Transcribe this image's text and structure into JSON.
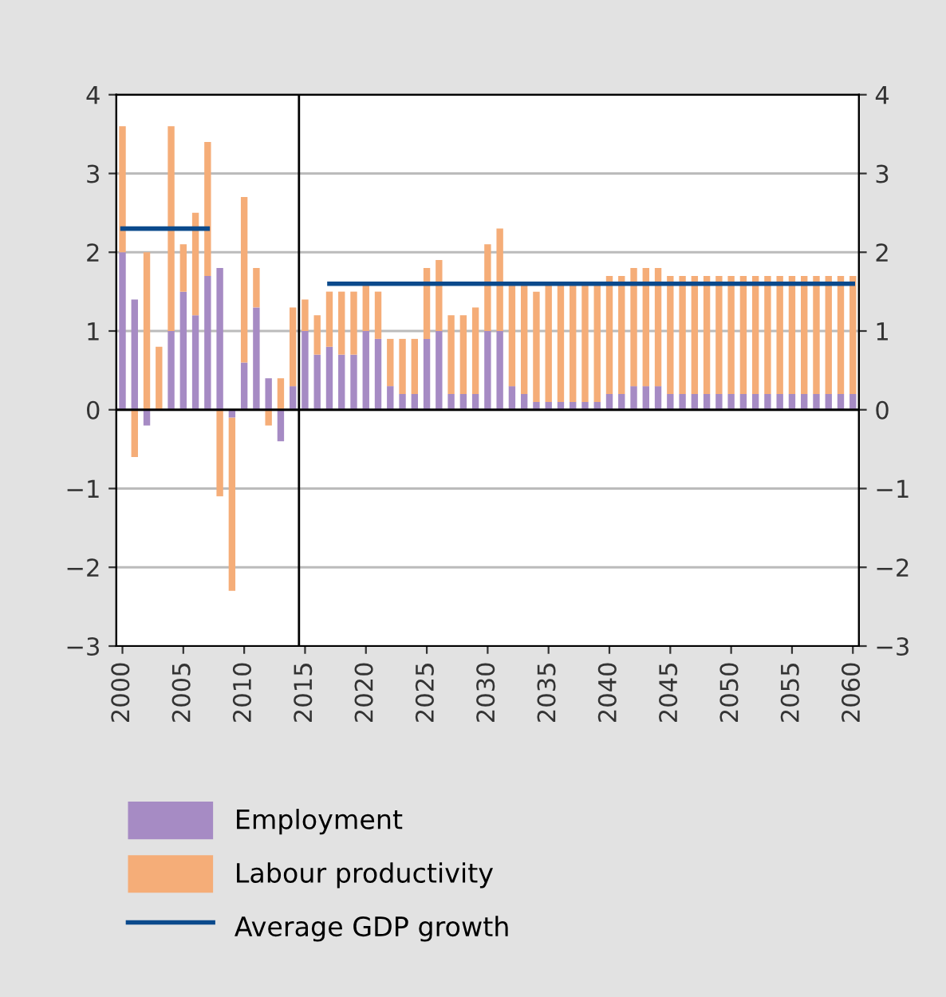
{
  "chart_data": {
    "type": "bar",
    "stacked": true,
    "x": [
      2000,
      2001,
      2002,
      2003,
      2004,
      2005,
      2006,
      2007,
      2008,
      2009,
      2010,
      2011,
      2012,
      2013,
      2014,
      2015,
      2016,
      2017,
      2018,
      2019,
      2020,
      2021,
      2022,
      2023,
      2024,
      2025,
      2026,
      2027,
      2028,
      2029,
      2030,
      2031,
      2032,
      2033,
      2034,
      2035,
      2036,
      2037,
      2038,
      2039,
      2040,
      2041,
      2042,
      2043,
      2044,
      2045,
      2046,
      2047,
      2048,
      2049,
      2050,
      2051,
      2052,
      2053,
      2054,
      2055,
      2056,
      2057,
      2058,
      2059,
      2060
    ],
    "series": [
      {
        "name": "Employment",
        "color": "#a68bc4",
        "values": [
          2.0,
          1.4,
          -0.2,
          0,
          1.0,
          1.5,
          1.2,
          1.7,
          1.8,
          -0.1,
          0.6,
          1.3,
          0.4,
          -0.4,
          0.3,
          1.0,
          0.7,
          0.8,
          0.7,
          0.7,
          1.0,
          0.9,
          0.3,
          0.2,
          0.2,
          0.9,
          1.0,
          0.2,
          0.2,
          0.2,
          1.0,
          1.0,
          0.3,
          0.2,
          0.1,
          0.1,
          0.1,
          0.1,
          0.1,
          0.1,
          0.2,
          0.2,
          0.3,
          0.3,
          0.3,
          0.2,
          0.2,
          0.2,
          0.2,
          0.2,
          0.2,
          0.2,
          0.2,
          0.2,
          0.2,
          0.2,
          0.2,
          0.2,
          0.2,
          0.2,
          0.2
        ]
      },
      {
        "name": "Labour productivity",
        "color": "#f5ad78",
        "values": [
          1.6,
          -0.6,
          2.0,
          0.8,
          2.6,
          0.6,
          1.3,
          1.7,
          -1.1,
          -2.2,
          2.1,
          0.5,
          -0.2,
          0.4,
          1.0,
          0.4,
          0.5,
          0.7,
          0.8,
          0.8,
          0.6,
          0.6,
          0.6,
          0.7,
          0.7,
          0.9,
          0.9,
          1.0,
          1.0,
          1.1,
          1.1,
          1.3,
          1.3,
          1.4,
          1.4,
          1.5,
          1.5,
          1.5,
          1.5,
          1.5,
          1.5,
          1.5,
          1.5,
          1.5,
          1.5,
          1.5,
          1.5,
          1.5,
          1.5,
          1.5,
          1.5,
          1.5,
          1.5,
          1.5,
          1.5,
          1.5,
          1.5,
          1.5,
          1.5,
          1.5,
          1.5
        ]
      },
      {
        "name": "Average GDP growth",
        "type": "line",
        "color": "#0b4a8c",
        "x": [
          2000,
          2007,
          2012,
          2017,
          2060
        ],
        "values": [
          2.3,
          2.3,
          null,
          1.6,
          1.6
        ]
      }
    ],
    "xlim": [
      1999.5,
      2060.5
    ],
    "xticks": [
      2000,
      2005,
      2010,
      2015,
      2020,
      2025,
      2030,
      2035,
      2040,
      2045,
      2050,
      2055,
      2060
    ],
    "ylim": [
      -3,
      4
    ],
    "yticks": [
      -3,
      -2,
      -1,
      0,
      1,
      2,
      3,
      4
    ],
    "y2lim": [
      -3,
      4
    ],
    "y2ticks": [
      -3,
      -2,
      -1,
      0,
      1,
      2,
      3,
      4
    ],
    "ref_lines": [
      {
        "axis": "x",
        "value": 2014.5,
        "label": null,
        "color": "#000000"
      }
    ],
    "grid": "y",
    "legend": "bottom"
  }
}
